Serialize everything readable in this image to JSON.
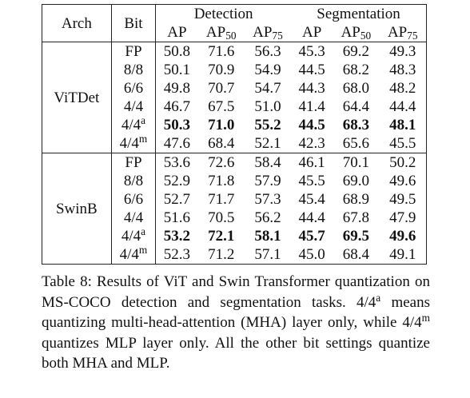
{
  "table": {
    "header": {
      "arch": "Arch",
      "bit": "Bit",
      "groups": [
        "Detection",
        "Segmentation"
      ],
      "metrics": [
        {
          "main": "AP"
        },
        {
          "main": "AP",
          "sub": "50"
        },
        {
          "main": "AP",
          "sub": "75"
        },
        {
          "main": "AP"
        },
        {
          "main": "AP",
          "sub": "50"
        },
        {
          "main": "AP",
          "sub": "75"
        }
      ]
    },
    "sections": [
      {
        "arch": "ViTDet",
        "rows": [
          {
            "bit": {
              "base": "FP"
            },
            "values": [
              "50.8",
              "71.6",
              "56.3",
              "45.3",
              "69.2",
              "49.3"
            ],
            "bold": false
          },
          {
            "bit": {
              "base": "8/8"
            },
            "values": [
              "50.1",
              "70.9",
              "54.9",
              "44.5",
              "68.2",
              "48.3"
            ],
            "bold": false
          },
          {
            "bit": {
              "base": "6/6"
            },
            "values": [
              "49.8",
              "70.7",
              "54.7",
              "44.3",
              "68.0",
              "48.2"
            ],
            "bold": false
          },
          {
            "bit": {
              "base": "4/4"
            },
            "values": [
              "46.7",
              "67.5",
              "51.0",
              "41.4",
              "64.4",
              "44.4"
            ],
            "bold": false
          },
          {
            "bit": {
              "base": "4/4",
              "sup": "a"
            },
            "values": [
              "50.3",
              "71.0",
              "55.2",
              "44.5",
              "68.3",
              "48.1"
            ],
            "bold": true
          },
          {
            "bit": {
              "base": "4/4",
              "sup": "m"
            },
            "values": [
              "47.6",
              "68.4",
              "52.1",
              "42.3",
              "65.6",
              "45.5"
            ],
            "bold": false
          }
        ]
      },
      {
        "arch": "SwinB",
        "rows": [
          {
            "bit": {
              "base": "FP"
            },
            "values": [
              "53.6",
              "72.6",
              "58.4",
              "46.1",
              "70.1",
              "50.2"
            ],
            "bold": false
          },
          {
            "bit": {
              "base": "8/8"
            },
            "values": [
              "52.9",
              "71.8",
              "57.9",
              "45.5",
              "69.0",
              "49.6"
            ],
            "bold": false
          },
          {
            "bit": {
              "base": "6/6"
            },
            "values": [
              "52.7",
              "71.7",
              "57.3",
              "45.4",
              "68.9",
              "49.5"
            ],
            "bold": false
          },
          {
            "bit": {
              "base": "4/4"
            },
            "values": [
              "51.6",
              "70.5",
              "56.2",
              "44.4",
              "67.8",
              "47.9"
            ],
            "bold": false
          },
          {
            "bit": {
              "base": "4/4",
              "sup": "a"
            },
            "values": [
              "53.2",
              "72.1",
              "58.1",
              "45.7",
              "69.5",
              "49.6"
            ],
            "bold": true
          },
          {
            "bit": {
              "base": "4/4",
              "sup": "m"
            },
            "values": [
              "52.3",
              "71.2",
              "57.1",
              "45.0",
              "68.4",
              "49.1"
            ],
            "bold": false
          }
        ]
      }
    ]
  },
  "caption": {
    "segments": [
      {
        "text": "Table 8: Results of ViT and Swin Transformer quantization on MS-COCO detection and segmentation tasks. 4/4"
      },
      {
        "sup": "a"
      },
      {
        "text": " means quantizing multi-head-attention (MHA) layer only, while 4/4"
      },
      {
        "sup": "m"
      },
      {
        "text": " quantizes MLP layer only. All the other bit settings quantize both MHA and MLP."
      }
    ]
  }
}
